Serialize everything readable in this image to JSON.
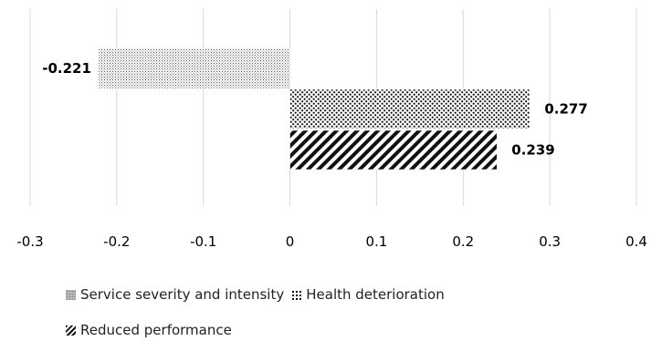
{
  "chart_data": {
    "type": "bar",
    "orientation": "horizontal",
    "series": [
      {
        "name": "Service severity and intensity",
        "values": [
          -0.221
        ],
        "pattern": "fine-dots",
        "label": "-0.221"
      },
      {
        "name": "Health deterioration",
        "values": [
          0.277
        ],
        "pattern": "coarse-dots",
        "label": "0.277"
      },
      {
        "name": "Reduced performance",
        "values": [
          0.239
        ],
        "pattern": "diagonal-hatch",
        "label": "0.239"
      }
    ],
    "xlim": [
      -0.3,
      0.4
    ],
    "xticks": [
      "-0.3",
      "-0.2",
      "-0.1",
      "0",
      "0.1",
      "0.2",
      "0.3",
      "0.4"
    ],
    "xtick_values": [
      -0.3,
      -0.2,
      -0.1,
      0,
      0.1,
      0.2,
      0.3,
      0.4
    ],
    "grid": "vertical",
    "legend_position": "bottom"
  },
  "legend": {
    "items": [
      {
        "label": "Service severity and intensity"
      },
      {
        "label": "Health deterioration"
      },
      {
        "label": "Reduced performance"
      }
    ]
  }
}
